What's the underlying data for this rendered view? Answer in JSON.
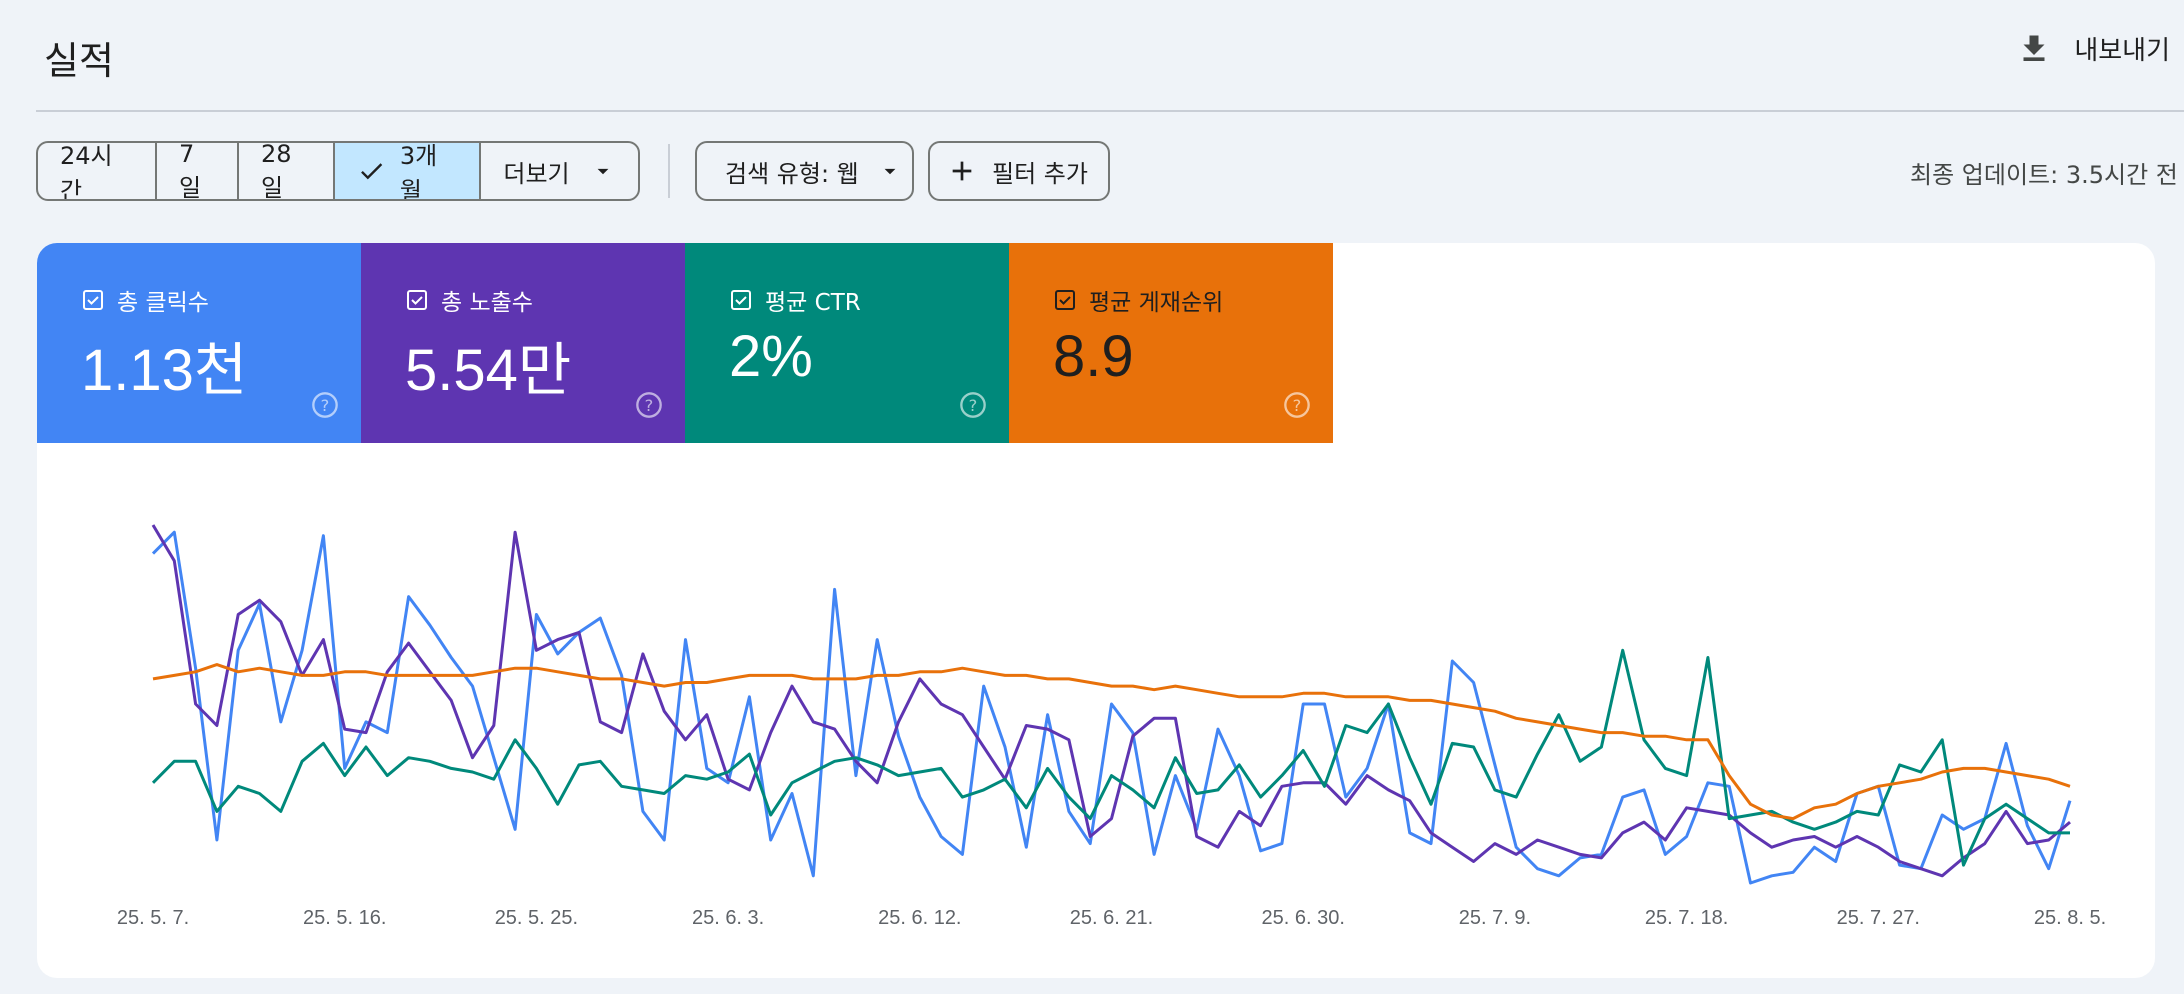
{
  "header": {
    "title": "실적",
    "export_label": "내보내기"
  },
  "toolbar": {
    "ranges": [
      {
        "label": "24시간",
        "selected": false
      },
      {
        "label": "7일",
        "selected": false
      },
      {
        "label": "28일",
        "selected": false
      },
      {
        "label": "3개월",
        "selected": true
      }
    ],
    "more_label": "더보기",
    "search_type_label": "검색 유형: 웹",
    "add_filter_label": "필터 추가",
    "last_updated": "최종 업데이트: 3.5시간 전"
  },
  "metrics": [
    {
      "label": "총 클릭수",
      "value": "1.13천",
      "color": "#4285f4",
      "checked": true
    },
    {
      "label": "총 노출수",
      "value": "5.54만",
      "color": "#5e35b1",
      "checked": true
    },
    {
      "label": "평균 CTR",
      "value": "2%",
      "color": "#00897b",
      "checked": true
    },
    {
      "label": "평균 게재순위",
      "value": "8.9",
      "color": "#e8710a",
      "checked": true
    }
  ],
  "icons": {
    "export": "download-icon",
    "check": "check-icon",
    "dropdown": "dropdown-arrow-icon",
    "add": "plus-icon",
    "checkbox": "checkbox-checked-icon",
    "help": "help-circle-icon"
  },
  "chart_data": {
    "type": "line",
    "x_labels": [
      "25. 5. 7.",
      "25. 5. 16.",
      "25. 5. 25.",
      "25. 6. 3.",
      "25. 6. 12.",
      "25. 6. 21.",
      "25. 6. 30.",
      "25. 7. 9.",
      "25. 7. 18.",
      "25. 7. 27.",
      "25. 8. 5."
    ],
    "x_label_index": [
      0,
      9,
      18,
      27,
      36,
      45,
      54,
      63,
      72,
      81,
      90
    ],
    "grid": false,
    "legend": "none",
    "series": [
      {
        "color": "#4285f4",
        "values": [
          0.92,
          0.98,
          0.6,
          0.12,
          0.65,
          0.78,
          0.45,
          0.65,
          0.97,
          0.32,
          0.45,
          0.42,
          0.8,
          0.72,
          0.63,
          0.55,
          0.35,
          0.15,
          0.75,
          0.64,
          0.7,
          0.74,
          0.58,
          0.2,
          0.12,
          0.68,
          0.32,
          0.28,
          0.52,
          0.12,
          0.25,
          0.02,
          0.82,
          0.3,
          0.68,
          0.41,
          0.24,
          0.13,
          0.08,
          0.55,
          0.38,
          0.1,
          0.47,
          0.2,
          0.11,
          0.5,
          0.42,
          0.08,
          0.3,
          0.15,
          0.43,
          0.3,
          0.09,
          0.11,
          0.5,
          0.5,
          0.24,
          0.32,
          0.5,
          0.14,
          0.11,
          0.62,
          0.56,
          0.33,
          0.1,
          0.04,
          0.02,
          0.07,
          0.08,
          0.24,
          0.26,
          0.08,
          0.13,
          0.28,
          0.27,
          0.0,
          0.02,
          0.03,
          0.1,
          0.06,
          0.25,
          0.27,
          0.05,
          0.04,
          0.19,
          0.15,
          0.18,
          0.39,
          0.16,
          0.04,
          0.23
        ]
      },
      {
        "color": "#5e35b1",
        "values": [
          1.0,
          0.9,
          0.5,
          0.44,
          0.75,
          0.79,
          0.73,
          0.58,
          0.68,
          0.43,
          0.42,
          0.59,
          0.67,
          0.59,
          0.51,
          0.35,
          0.44,
          0.98,
          0.65,
          0.68,
          0.7,
          0.45,
          0.42,
          0.64,
          0.48,
          0.4,
          0.47,
          0.29,
          0.26,
          0.42,
          0.55,
          0.45,
          0.43,
          0.34,
          0.28,
          0.45,
          0.57,
          0.5,
          0.47,
          0.38,
          0.29,
          0.44,
          0.43,
          0.4,
          0.13,
          0.18,
          0.41,
          0.46,
          0.46,
          0.13,
          0.1,
          0.2,
          0.16,
          0.27,
          0.28,
          0.28,
          0.22,
          0.3,
          0.26,
          0.23,
          0.14,
          0.1,
          0.06,
          0.11,
          0.08,
          0.12,
          0.1,
          0.08,
          0.07,
          0.14,
          0.17,
          0.12,
          0.21,
          0.2,
          0.19,
          0.14,
          0.1,
          0.12,
          0.13,
          0.1,
          0.13,
          0.1,
          0.06,
          0.04,
          0.02,
          0.07,
          0.11,
          0.2,
          0.11,
          0.12,
          0.17
        ]
      },
      {
        "color": "#00897b",
        "values": [
          0.28,
          0.34,
          0.34,
          0.2,
          0.27,
          0.25,
          0.2,
          0.34,
          0.39,
          0.3,
          0.38,
          0.3,
          0.35,
          0.34,
          0.32,
          0.31,
          0.29,
          0.4,
          0.32,
          0.22,
          0.33,
          0.34,
          0.27,
          0.26,
          0.25,
          0.3,
          0.29,
          0.31,
          0.36,
          0.19,
          0.28,
          0.31,
          0.34,
          0.35,
          0.33,
          0.3,
          0.31,
          0.32,
          0.24,
          0.26,
          0.29,
          0.21,
          0.32,
          0.24,
          0.18,
          0.3,
          0.26,
          0.21,
          0.35,
          0.25,
          0.26,
          0.33,
          0.24,
          0.3,
          0.37,
          0.27,
          0.44,
          0.42,
          0.5,
          0.35,
          0.22,
          0.39,
          0.38,
          0.26,
          0.24,
          0.36,
          0.47,
          0.34,
          0.38,
          0.65,
          0.4,
          0.32,
          0.3,
          0.63,
          0.18,
          0.19,
          0.2,
          0.17,
          0.15,
          0.17,
          0.2,
          0.19,
          0.33,
          0.31,
          0.4,
          0.05,
          0.18,
          0.22,
          0.18,
          0.14,
          0.14
        ]
      },
      {
        "color": "#e8710a",
        "values": [
          0.57,
          0.58,
          0.59,
          0.61,
          0.59,
          0.6,
          0.59,
          0.58,
          0.58,
          0.59,
          0.59,
          0.58,
          0.58,
          0.58,
          0.58,
          0.58,
          0.59,
          0.6,
          0.6,
          0.59,
          0.58,
          0.57,
          0.57,
          0.56,
          0.55,
          0.56,
          0.56,
          0.57,
          0.58,
          0.58,
          0.58,
          0.57,
          0.57,
          0.57,
          0.58,
          0.58,
          0.59,
          0.59,
          0.6,
          0.59,
          0.58,
          0.58,
          0.57,
          0.57,
          0.56,
          0.55,
          0.55,
          0.54,
          0.55,
          0.54,
          0.53,
          0.52,
          0.52,
          0.52,
          0.53,
          0.53,
          0.52,
          0.52,
          0.52,
          0.51,
          0.51,
          0.5,
          0.49,
          0.48,
          0.46,
          0.45,
          0.44,
          0.43,
          0.42,
          0.42,
          0.41,
          0.41,
          0.4,
          0.4,
          0.3,
          0.22,
          0.19,
          0.18,
          0.21,
          0.22,
          0.25,
          0.27,
          0.28,
          0.29,
          0.31,
          0.32,
          0.32,
          0.31,
          0.3,
          0.29,
          0.27
        ]
      }
    ]
  }
}
